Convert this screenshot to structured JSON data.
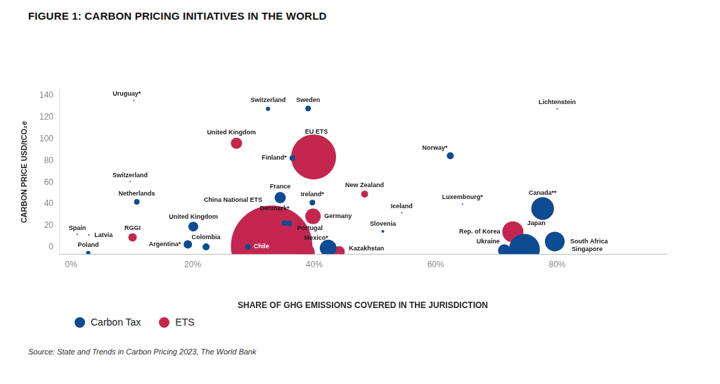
{
  "chart_data": {
    "type": "bubble",
    "title": "FIGURE 1: CARBON PRICING INITIATIVES IN THE WORLD",
    "x_label": "SHARE OF GHG EMISSIONS COVERED IN THE JURISDICTION",
    "y_label": "CARBON PRICE USD/tCO₂e",
    "source": "Source: State and Trends in Carbon Pricing 2023, The World Bank",
    "xlim": [
      -2,
      98
    ],
    "xticks": [
      {
        "value": 0,
        "label": "0%"
      },
      {
        "value": 20,
        "label": "20%"
      },
      {
        "value": 40,
        "label": "40%"
      },
      {
        "value": 60,
        "label": "60%"
      },
      {
        "value": 80,
        "label": "80%"
      }
    ],
    "ylim": [
      -6,
      145
    ],
    "yticks": [
      0,
      20,
      40,
      60,
      80,
      100,
      120,
      140
    ],
    "grid": false,
    "legend": "bottom left",
    "series": [
      {
        "name": "Carbon Tax",
        "color": "#0d4c92",
        "labels": [
          "Uruguay*",
          "Switzerland",
          "Sweden",
          "Lichtenstein",
          "Finland*",
          "Norway*",
          "Netherlands",
          "France",
          "Ireland*",
          "Luxembourg*",
          "Canada**",
          "Iceland",
          "United Kingdom",
          "Denmark*",
          "Portugal",
          "Slovenia",
          "Spain",
          "Latvia",
          "Poland",
          "Argentina*",
          "Colombia",
          "Chile",
          null,
          "Ukraine",
          "Japan",
          "South Africa",
          "Singapore"
        ],
        "x": [
          10.3,
          32.4,
          39,
          80,
          36.4,
          62.4,
          10.8,
          34.4,
          39.7,
          64.4,
          77.6,
          54.4,
          20.1,
          35.1,
          35.9,
          51.3,
          1,
          2.9,
          2.8,
          19.2,
          22.2,
          29.1,
          42.3,
          71.3,
          74.6,
          79.6,
          79.6
        ],
        "y": [
          135.4,
          127.6,
          128,
          127.6,
          82.3,
          84.5,
          42,
          45.9,
          41.4,
          39.8,
          35.9,
          32,
          19.3,
          22.7,
          22.1,
          14.9,
          12.2,
          11.6,
          -5,
          2.8,
          0.6,
          0.6,
          -0.6,
          -2.8,
          -1.7,
          5.5,
          0
        ],
        "sizes": [
          1,
          3,
          4,
          1,
          4,
          5,
          4,
          8,
          4,
          1,
          16,
          1,
          7,
          4,
          4,
          2,
          1,
          1,
          3,
          6,
          5,
          4,
          12,
          9,
          22,
          14,
          4
        ]
      },
      {
        "name": "ETS",
        "color": "#c4264f",
        "labels": [
          "United Kingdom",
          "EU ETS",
          "Switzerland",
          "New Zealand",
          null,
          "Germany",
          "Rep. of Korea",
          "RGGI",
          "China National ETS",
          "Mexico*",
          "Kazakhstan"
        ],
        "x": [
          27.2,
          39.9,
          9.7,
          48.3,
          77.6,
          39.8,
          72.7,
          10.1,
          33,
          38.7,
          44.1
        ],
        "y": [
          96,
          83.4,
          60.8,
          49.2,
          35.9,
          28.7,
          14.4,
          9.4,
          1.1,
          -4.4,
          -3.9
        ],
        "sizes": [
          8,
          32,
          1,
          5,
          16,
          11,
          15,
          6,
          58,
          12,
          8
        ]
      }
    ]
  }
}
